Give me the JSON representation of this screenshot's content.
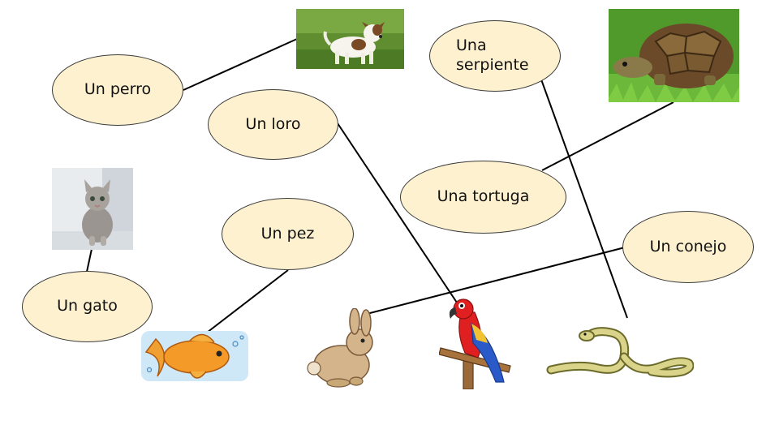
{
  "labels": {
    "perro": "Un perro",
    "loro": "Un loro",
    "serpiente": "Una\nserpiente",
    "tortuga": "Una tortuga",
    "gato": "Un gato",
    "pez": "Un pez",
    "conejo": "Un conejo"
  },
  "icons": [
    "dog-photo",
    "turtle-photo",
    "cat-photo",
    "goldfish-illustration",
    "rabbit-illustration",
    "parrot-illustration",
    "snake-illustration"
  ],
  "colors": {
    "bubble_fill": "#fdf1cf",
    "bubble_border": "#3a3a3a",
    "line": "#000000"
  }
}
